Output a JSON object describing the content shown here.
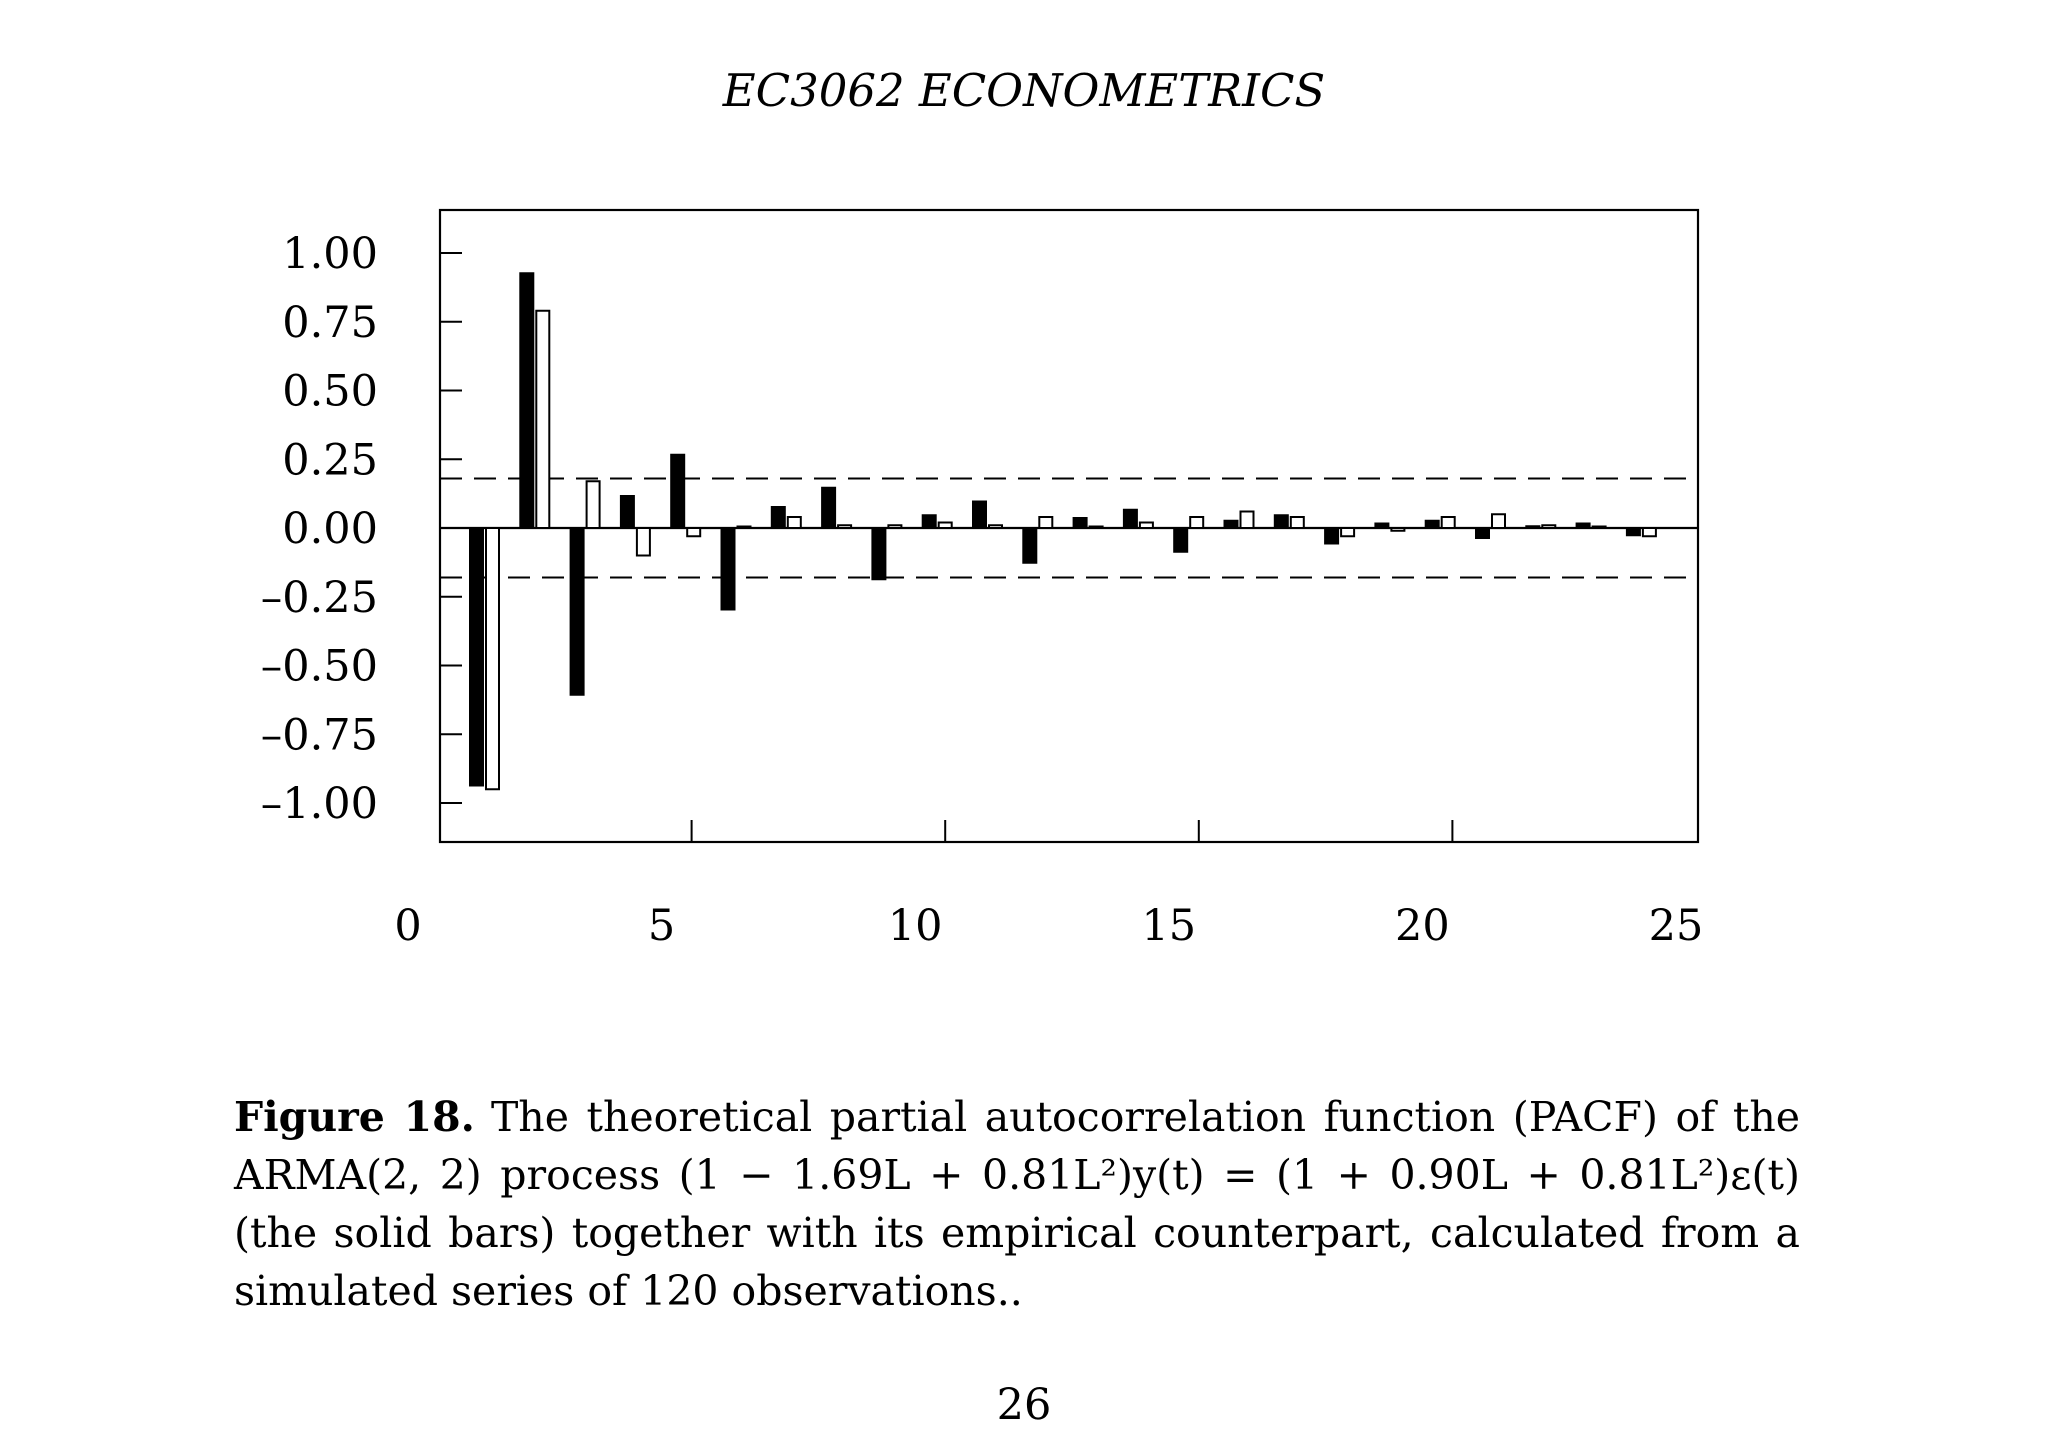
{
  "header": {
    "running_title": "EC3062 ECONOMETRICS"
  },
  "chart_data": {
    "type": "bar",
    "title": "",
    "xlabel": "",
    "ylabel": "",
    "xlim": [
      0,
      25
    ],
    "ylim": [
      -1.15,
      1.15
    ],
    "x_ticks": [
      0,
      5,
      10,
      15,
      20,
      25
    ],
    "x_tick_labels": [
      "0",
      "5",
      "10",
      "15",
      "20",
      "25"
    ],
    "y_ticks": [
      1.0,
      0.75,
      0.5,
      0.25,
      0.0,
      -0.25,
      -0.5,
      -0.75,
      -1.0
    ],
    "y_tick_labels": [
      "1.00",
      "0.75",
      "0.50",
      "0.25",
      "0.00",
      "–0.25",
      "–0.50",
      "–0.75",
      "–1.00"
    ],
    "confidence_band": [
      -0.18,
      0.18
    ],
    "lags": [
      1,
      2,
      3,
      4,
      5,
      6,
      7,
      8,
      9,
      10,
      11,
      12,
      13,
      14,
      15,
      16,
      17,
      18,
      19,
      20,
      21,
      22,
      23,
      24
    ],
    "series": [
      {
        "style": "solid",
        "values": [
          -0.94,
          0.93,
          -0.61,
          0.12,
          0.27,
          -0.3,
          0.08,
          0.15,
          -0.19,
          0.05,
          0.1,
          -0.13,
          0.04,
          0.07,
          -0.09,
          0.03,
          0.05,
          -0.06,
          0.02,
          0.03,
          -0.04,
          0.01,
          0.02,
          -0.03
        ]
      },
      {
        "style": "hollow",
        "values": [
          -0.95,
          0.79,
          0.17,
          -0.1,
          -0.03,
          0.0,
          0.04,
          0.01,
          0.01,
          0.02,
          0.01,
          0.04,
          0.0,
          0.02,
          0.04,
          0.06,
          0.04,
          -0.03,
          -0.01,
          0.04,
          0.05,
          0.01,
          0.0,
          -0.03
        ]
      }
    ]
  },
  "caption": {
    "label": "Figure 18.",
    "text": "The theoretical partial autocorrelation function (PACF) of the ARMA(2, 2) process (1 − 1.69L + 0.81L²)y(t) = (1 + 0.90L + 0.81L²)ε(t) (the solid bars) together with its empirical counterpart, calculated from a simulated series of 120 observations.."
  },
  "footer": {
    "page_number": "26"
  }
}
